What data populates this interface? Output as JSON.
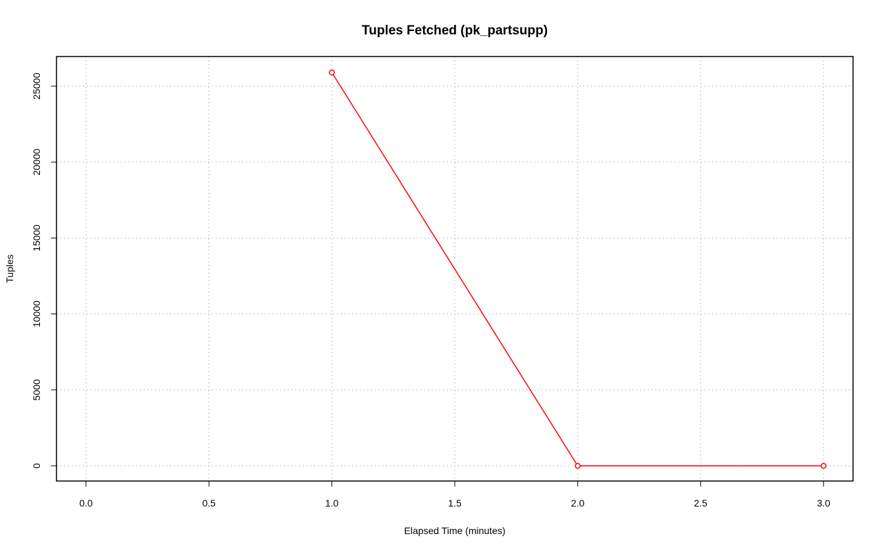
{
  "chart_data": {
    "type": "line",
    "title": "Tuples Fetched (pk_partsupp)",
    "x_label": "Elapsed Time (minutes)",
    "y_label": "Tuples",
    "x": [
      1,
      2,
      3
    ],
    "series": [
      {
        "color": "#ff0000",
        "values": [
          25900,
          0,
          0
        ]
      }
    ],
    "xlim": [
      -0.12,
      3.12
    ],
    "xticks": [
      {
        "value": 0,
        "label": "0.0"
      },
      {
        "value": 0.5,
        "label": "0.5"
      },
      {
        "value": 1,
        "label": "1.0"
      },
      {
        "value": 1.5,
        "label": "1.5"
      },
      {
        "value": 2,
        "label": "2.0"
      },
      {
        "value": 2.5,
        "label": "2.5"
      },
      {
        "value": 3,
        "label": "3.0"
      }
    ],
    "ylim": [
      -1000,
      26950
    ],
    "yticks": [
      0,
      5000,
      10000,
      15000,
      20000,
      25000
    ],
    "grid": true
  }
}
